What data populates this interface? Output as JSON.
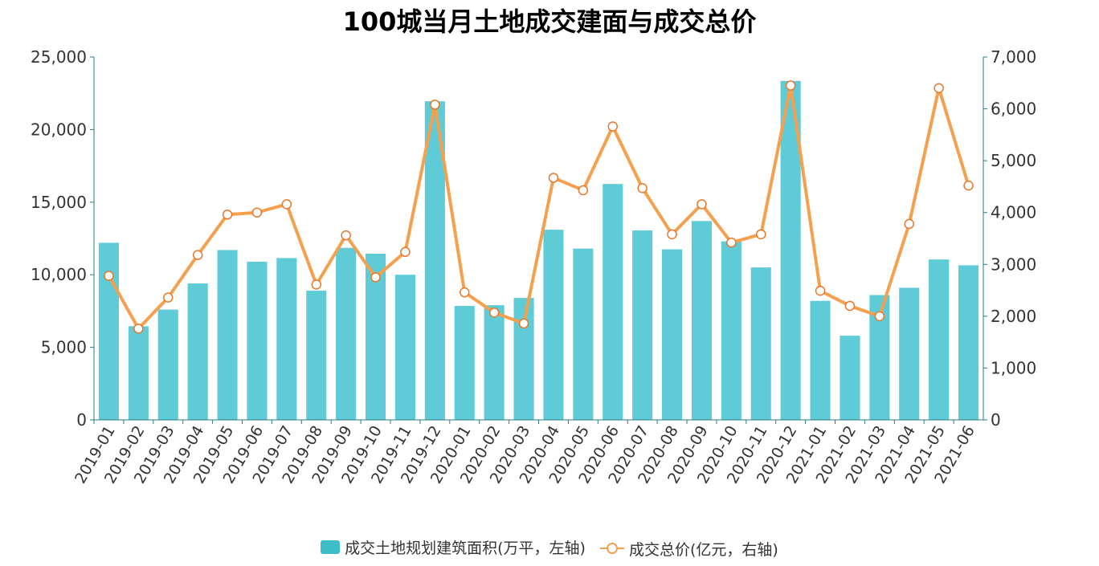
{
  "chart_data": {
    "type": "bar",
    "title": "100城当月土地成交建面与成交总价",
    "categories": [
      "2019-01",
      "2019-02",
      "2019-03",
      "2019-04",
      "2019-05",
      "2019-06",
      "2019-07",
      "2019-08",
      "2019-09",
      "2019-10",
      "2019-11",
      "2019-12",
      "2020-01",
      "2020-02",
      "2020-03",
      "2020-04",
      "2020-05",
      "2020-06",
      "2020-07",
      "2020-08",
      "2020-09",
      "2020-10",
      "2020-11",
      "2020-12",
      "2021-01",
      "2021-02",
      "2021-03",
      "2021-04",
      "2021-05",
      "2021-06"
    ],
    "series": [
      {
        "name": "成交土地规划建筑面积(万平，左轴)",
        "type": "bar",
        "axis": "left",
        "color": "#5ecbd6",
        "values": [
          12200,
          6450,
          7600,
          9400,
          11700,
          10900,
          11150,
          8900,
          11850,
          11450,
          10000,
          21950,
          7850,
          7900,
          8400,
          13100,
          11800,
          16250,
          13050,
          11750,
          13700,
          12300,
          10500,
          23350,
          8200,
          5800,
          8600,
          9100,
          11050,
          10650
        ]
      },
      {
        "name": "成交总价(亿元，右轴)",
        "type": "line",
        "axis": "right",
        "color": "#f5a04f",
        "values": [
          2780,
          1760,
          2360,
          3180,
          3960,
          4000,
          4160,
          2610,
          3560,
          2750,
          3240,
          6080,
          2460,
          2070,
          1860,
          4670,
          4430,
          5660,
          4470,
          3580,
          4160,
          3420,
          3580,
          6450,
          2490,
          2200,
          2000,
          3780,
          6400,
          4520
        ]
      }
    ],
    "ylim_left": [
      0,
      25000
    ],
    "ylim_right": [
      0,
      7000
    ],
    "yticks_left": [
      "0",
      "5,000",
      "10,000",
      "15,000",
      "20,000",
      "25,000"
    ],
    "yticks_right": [
      "0",
      "1,000",
      "2,000",
      "3,000",
      "4,000",
      "5,000",
      "6,000",
      "7,000"
    ],
    "grid": false,
    "legend_position": "bottom"
  }
}
